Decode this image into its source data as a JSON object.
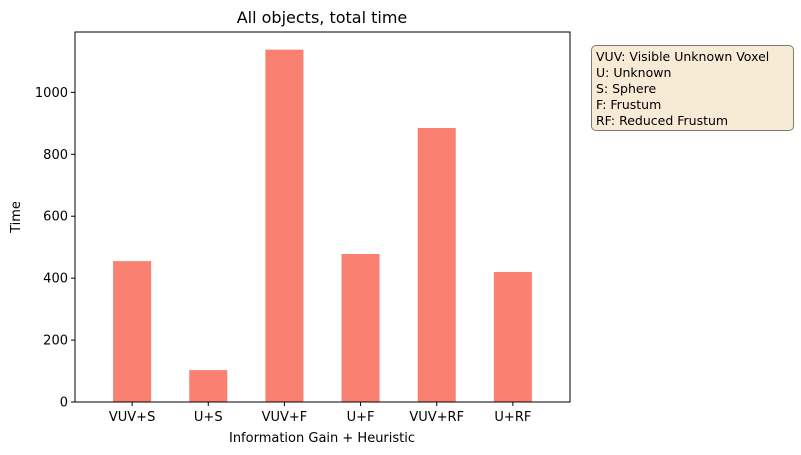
{
  "chart_data": {
    "type": "bar",
    "title": "All objects, total time",
    "xlabel": "Information Gain + Heuristic",
    "ylabel": "Time",
    "categories": [
      "VUV+S",
      "U+S",
      "VUV+F",
      "U+F",
      "VUV+RF",
      "U+RF"
    ],
    "values": [
      455,
      103,
      1138,
      478,
      885,
      420
    ],
    "ylim": [
      0,
      1195
    ],
    "yticks": [
      0,
      200,
      400,
      600,
      800,
      1000
    ],
    "bar_color": "#fa8072",
    "grid": false,
    "annotation": {
      "placement": "outside-right-top",
      "lines": [
        "VUV: Visible Unknown Voxel",
        "U: Unknown",
        "S: Sphere",
        "F: Frustum",
        "RF: Reduced Frustum"
      ]
    }
  }
}
